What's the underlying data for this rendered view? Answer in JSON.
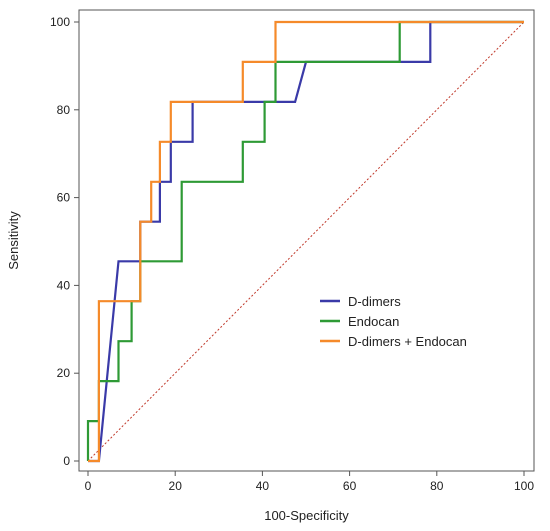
{
  "chart_data": {
    "type": "line",
    "title": "",
    "xlabel": "100-Specificity",
    "ylabel": "Sensitivity",
    "xlim": [
      0,
      100
    ],
    "ylim": [
      0,
      100
    ],
    "x_ticks": [
      "0",
      "20",
      "40",
      "60",
      "80",
      "100"
    ],
    "y_ticks": [
      "0",
      "20",
      "40",
      "60",
      "80",
      "100"
    ],
    "grid": false,
    "legend_position": "lower-right",
    "reference_line": {
      "x": [
        0,
        100
      ],
      "y": [
        0,
        100
      ],
      "color": "#c0392b",
      "style": "dotted"
    },
    "series": [
      {
        "name": "D-dimers",
        "color": "#3a3aa8",
        "x": [
          0,
          2.5,
          7,
          7,
          12,
          12,
          14.5,
          14.5,
          16.5,
          16.5,
          19,
          19,
          24,
          24,
          47.5,
          50,
          78.5,
          78.5,
          100
        ],
        "y": [
          0,
          0,
          45.5,
          45.5,
          45.5,
          54.5,
          54.5,
          54.5,
          54.5,
          63.6,
          63.6,
          72.7,
          72.7,
          81.8,
          81.8,
          90.9,
          90.9,
          100,
          100
        ]
      },
      {
        "name": "Endocan",
        "color": "#2e9a35",
        "x": [
          0,
          0,
          2.5,
          2.5,
          7,
          7,
          10,
          10,
          12,
          12,
          21.5,
          21.5,
          35.5,
          35.5,
          40.5,
          40.5,
          43,
          43,
          71.5,
          71.5,
          100
        ],
        "y": [
          0,
          9.1,
          9.1,
          18.2,
          18.2,
          27.3,
          27.3,
          36.4,
          36.4,
          45.5,
          45.5,
          63.6,
          63.6,
          72.7,
          72.7,
          81.8,
          81.8,
          90.9,
          90.9,
          100,
          100
        ]
      },
      {
        "name": "D-dimers + Endocan",
        "color": "#f58a2a",
        "x": [
          0,
          2.5,
          2.5,
          12,
          12,
          14.5,
          14.5,
          16.5,
          16.5,
          19,
          19,
          35.5,
          35.5,
          43,
          43,
          100
        ],
        "y": [
          0,
          0,
          36.4,
          36.4,
          54.5,
          54.5,
          63.6,
          63.6,
          72.7,
          72.7,
          81.8,
          81.8,
          90.9,
          90.9,
          100,
          100
        ]
      }
    ]
  }
}
